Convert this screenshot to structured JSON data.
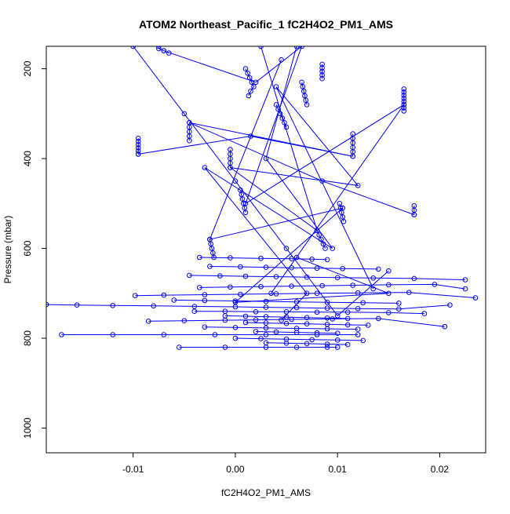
{
  "chart_data": {
    "type": "line",
    "title": "ATOM2 Northeast_Pacific_1 fC2H4O2_PM1_AMS",
    "xlabel": "fC2H4O2_PM1_AMS",
    "ylabel": "Pressure (mbar)",
    "xlim": [
      -0.0185,
      0.0245
    ],
    "ylim": [
      1055,
      150
    ],
    "y_reversed": true,
    "x_ticks": [
      -0.01,
      0.0,
      0.01,
      0.02
    ],
    "x_tick_labels": [
      "-0.01",
      "0.00",
      "0.01",
      "0.02"
    ],
    "y_ticks": [
      200,
      400,
      600,
      800,
      1000
    ],
    "y_tick_labels": [
      "200",
      "400",
      "600",
      "800",
      "1000"
    ],
    "grid": false,
    "legend": "none",
    "marker": "open-circle",
    "series_color": "#0000ff",
    "series": [
      {
        "x": [
          -0.0075,
          -0.0075,
          -0.007,
          -0.0065
        ],
        "y": [
          150,
          155,
          160,
          165
        ]
      },
      {
        "x": [
          0.0085,
          0.0085,
          0.0085,
          0.0085,
          0.0085
        ],
        "y": [
          190,
          198,
          206,
          214,
          222
        ]
      },
      {
        "x": [
          0.0165,
          0.0165,
          0.0165,
          0.0165,
          0.0165,
          0.0165,
          0.0165,
          0.0165
        ],
        "y": [
          245,
          252,
          259,
          266,
          273,
          280,
          287,
          294
        ]
      },
      {
        "x": [
          -0.0095,
          -0.0095,
          -0.0095,
          -0.0095,
          -0.0095,
          -0.0095
        ],
        "y": [
          355,
          362,
          369,
          376,
          383,
          390
        ]
      },
      {
        "x": [
          -0.0045,
          -0.0045,
          -0.0045,
          -0.0045,
          -0.0045
        ],
        "y": [
          320,
          330,
          340,
          350,
          360
        ]
      },
      {
        "x": [
          -0.0005,
          -0.0005,
          -0.0005,
          -0.0005,
          -0.0005
        ],
        "y": [
          380,
          390,
          400,
          410,
          420
        ]
      },
      {
        "x": [
          0.0115,
          0.0115,
          0.0115,
          0.0115,
          0.0115,
          0.0115
        ],
        "y": [
          345,
          355,
          365,
          375,
          385,
          395
        ]
      },
      {
        "x": [
          0.0175,
          0.0175,
          0.0175
        ],
        "y": [
          505,
          515,
          525
        ]
      },
      {
        "x": [
          0.001,
          0.0012,
          0.0014,
          0.0016,
          0.0018,
          0.0015,
          0.0013
        ],
        "y": [
          200,
          210,
          220,
          230,
          240,
          250,
          260
        ]
      },
      {
        "x": [
          0.004,
          0.0042,
          0.0044,
          0.0046,
          0.0048,
          0.005
        ],
        "y": [
          280,
          290,
          300,
          310,
          320,
          330
        ]
      },
      {
        "x": [
          0.0065,
          0.0066,
          0.0067,
          0.0068,
          0.0069,
          0.007
        ],
        "y": [
          230,
          240,
          250,
          260,
          270,
          280
        ]
      },
      {
        "x": [
          -0.0025,
          -0.0024,
          -0.0023,
          -0.0022,
          -0.0021
        ],
        "y": [
          580,
          590,
          600,
          610,
          620
        ]
      },
      {
        "x": [
          0.0005,
          0.0006,
          0.0007,
          0.0008,
          0.0009,
          0.001
        ],
        "y": [
          470,
          480,
          490,
          500,
          510,
          520
        ]
      },
      {
        "x": [
          0.008,
          0.0082,
          0.0084,
          0.0086,
          0.0088
        ],
        "y": [
          560,
          570,
          580,
          590,
          600
        ]
      },
      {
        "x": [
          0.0102,
          0.0103,
          0.0104,
          0.0105,
          0.0106
        ],
        "y": [
          500,
          510,
          520,
          530,
          540
        ]
      },
      {
        "x": [
          -0.0185,
          -0.0155,
          -0.012,
          -0.008,
          -0.004,
          0.0,
          0.003,
          0.006,
          0.009,
          0.012,
          0.016,
          0.021
        ],
        "y": [
          725,
          726,
          727,
          728,
          729,
          730,
          731,
          732,
          733,
          734,
          735,
          726
        ]
      },
      {
        "x": [
          -0.0098,
          -0.007,
          -0.003,
          0.0005,
          0.004,
          0.008,
          0.012,
          0.017,
          0.0235
        ],
        "y": [
          705,
          704,
          703,
          702,
          701,
          700,
          699,
          698,
          710
        ]
      },
      {
        "x": [
          -0.0085,
          -0.005,
          -0.001,
          0.002,
          0.0055,
          0.0095,
          0.014,
          0.0205
        ],
        "y": [
          762,
          761,
          760,
          759,
          758,
          757,
          756,
          774
        ]
      },
      {
        "x": [
          -0.017,
          -0.012,
          -0.007,
          -0.002,
          0.003,
          0.008,
          0.012
        ],
        "y": [
          792,
          792,
          792,
          792,
          792,
          792,
          792
        ]
      },
      {
        "x": [
          -0.0055,
          -0.001,
          0.003,
          0.006,
          0.009,
          0.01
        ],
        "y": [
          820,
          820,
          820,
          820,
          820,
          820
        ]
      },
      {
        "x": [
          -0.004,
          -0.001,
          0.002,
          0.005,
          0.008,
          0.011,
          0.015,
          0.0185
        ],
        "y": [
          740,
          740,
          741,
          741,
          742,
          742,
          743,
          745
        ]
      },
      {
        "x": [
          -0.003,
          0.0,
          0.003,
          0.006,
          0.009,
          0.012
        ],
        "y": [
          775,
          776,
          777,
          778,
          779,
          780
        ]
      },
      {
        "x": [
          0.0,
          0.0025,
          0.005,
          0.0075,
          0.01,
          0.0125
        ],
        "y": [
          800,
          801,
          802,
          803,
          804,
          805
        ]
      },
      {
        "x": [
          -0.0035,
          -0.0005,
          0.0025,
          0.0055,
          0.0085,
          0.0115,
          0.015,
          0.0195,
          0.0225
        ],
        "y": [
          687,
          686,
          685,
          684,
          683,
          682,
          681,
          680,
          690
        ]
      },
      {
        "x": [
          -0.0045,
          -0.0015,
          0.001,
          0.004,
          0.007,
          0.01,
          0.0135,
          0.0175,
          0.0225
        ],
        "y": [
          660,
          661,
          662,
          663,
          664,
          665,
          666,
          667,
          670
        ]
      },
      {
        "x": [
          -0.0025,
          0.0005,
          0.003,
          0.0055,
          0.008,
          0.0105,
          0.014
        ],
        "y": [
          640,
          641,
          642,
          643,
          644,
          645,
          646
        ]
      },
      {
        "x": [
          -0.0035,
          -0.0005,
          0.0025,
          0.0055,
          0.0075,
          0.009
        ],
        "y": [
          620,
          621,
          622,
          623,
          624,
          625
        ]
      },
      {
        "x": [
          -0.006,
          -0.003,
          0.0,
          0.003,
          0.006,
          0.009,
          0.0125,
          0.016
        ],
        "y": [
          715,
          716,
          717,
          718,
          719,
          720,
          721,
          722
        ]
      },
      {
        "x": [
          -0.001,
          0.001,
          0.003,
          0.005,
          0.007,
          0.009,
          0.011
        ],
        "y": [
          750,
          751,
          752,
          753,
          754,
          755,
          756
        ]
      },
      {
        "x": [
          0.001,
          0.003,
          0.005,
          0.007,
          0.009,
          0.011,
          0.013
        ],
        "y": [
          765,
          766,
          767,
          768,
          769,
          770,
          771
        ]
      },
      {
        "x": [
          0.002,
          0.004,
          0.006,
          0.008,
          0.01
        ],
        "y": [
          785,
          786,
          787,
          788,
          789
        ]
      },
      {
        "x": [
          0.003,
          0.005,
          0.007,
          0.009,
          0.011
        ],
        "y": [
          810,
          811,
          812,
          813,
          814
        ]
      },
      {
        "x": [
          -0.01,
          -0.005,
          0.0,
          0.005,
          0.01,
          0.015
        ],
        "y": [
          150,
          300,
          450,
          600,
          750,
          650
        ]
      },
      {
        "x": [
          -0.007,
          0.002,
          0.0065,
          0.001,
          0.0165,
          0.0035
        ],
        "y": [
          160,
          230,
          150,
          500,
          280,
          700
        ]
      },
      {
        "x": [
          -0.0095,
          0.0015,
          0.0115,
          -0.0045,
          0.0085,
          0.0175
        ],
        "y": [
          390,
          350,
          395,
          320,
          450,
          525
        ]
      },
      {
        "x": [
          0.0045,
          -0.0025,
          0.0105,
          0.0,
          0.015,
          0.006
        ],
        "y": [
          180,
          580,
          510,
          720,
          700,
          620
        ]
      },
      {
        "x": [
          0.0025,
          0.008,
          -0.0005,
          0.012,
          0.004,
          0.0135
        ],
        "y": [
          150,
          560,
          420,
          460,
          240,
          690
        ]
      },
      {
        "x": [
          0.006,
          0.003,
          0.0095,
          -0.003,
          0.007,
          0.0045
        ],
        "y": [
          150,
          400,
          600,
          420,
          700,
          760
        ]
      }
    ]
  }
}
